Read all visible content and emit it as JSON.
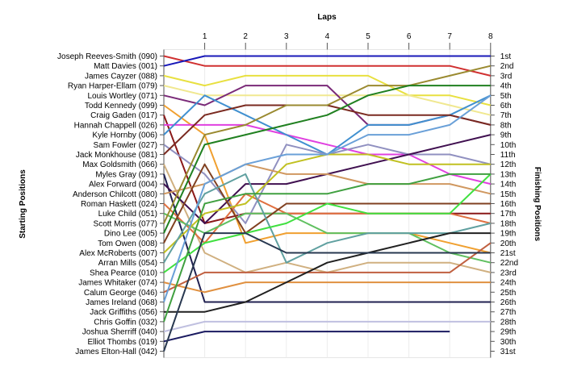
{
  "chart_data": {
    "type": "line",
    "title": "Laps",
    "ylabel_left": "Starting Positions",
    "ylabel_right": "Finishing Positions",
    "laps": [
      1,
      2,
      3,
      4,
      5,
      6,
      7,
      8
    ],
    "finish_labels": [
      "1st",
      "2nd",
      "3rd",
      "4th",
      "5th",
      "6th",
      "7th",
      "8th",
      "9th",
      "10th",
      "11th",
      "12th",
      "13th",
      "14th",
      "15th",
      "16th",
      "17th",
      "18th",
      "19th",
      "20th",
      "21st",
      "22nd",
      "23rd",
      "24th",
      "25th",
      "26th",
      "27th",
      "28th",
      "29th",
      "30th",
      "31st"
    ],
    "grid": true,
    "series": [
      {
        "name": "Joseph Reeves-Smith (090)",
        "color": "#d03030",
        "positions": [
          1,
          2,
          2,
          2,
          2,
          2,
          2,
          2,
          3
        ]
      },
      {
        "name": "Matt Davies (001)",
        "color": "#1818b8",
        "positions": [
          2,
          1,
          1,
          1,
          1,
          1,
          1,
          1,
          1
        ]
      },
      {
        "name": "James Cayzer (088)",
        "color": "#e8e040",
        "positions": [
          3,
          4,
          3,
          3,
          3,
          3,
          5,
          5,
          6
        ]
      },
      {
        "name": "Ryan Harper-Ellam (079)",
        "color": "#f0e890",
        "positions": [
          4,
          5,
          5,
          5,
          5,
          5,
          5,
          6,
          7
        ]
      },
      {
        "name": "Louis Wortley (071)",
        "color": "#7a2a78",
        "positions": [
          5,
          6,
          4,
          4,
          4,
          8,
          8,
          7,
          8
        ]
      },
      {
        "name": "Todd Kennedy (099)",
        "color": "#f0a030",
        "positions": [
          6,
          9,
          20,
          19,
          19,
          19,
          19,
          20,
          21
        ]
      },
      {
        "name": "Craig Gaden (017)",
        "color": "#8a1818",
        "positions": [
          7,
          18,
          17,
          17,
          17,
          17,
          17,
          17,
          17
        ]
      },
      {
        "name": "Hannah Chappell (026)",
        "color": "#e040e0",
        "positions": [
          8,
          8,
          8,
          9,
          10,
          11,
          11,
          13,
          14
        ]
      },
      {
        "name": "Kyle Hornby (006)",
        "color": "#4090d0",
        "positions": [
          9,
          5,
          7,
          9,
          11,
          8,
          8,
          7,
          5
        ]
      },
      {
        "name": "Sam Fowler (027)",
        "color": "#9090c0",
        "positions": [
          10,
          13,
          18,
          10,
          11,
          10,
          11,
          11,
          12
        ]
      },
      {
        "name": "Jack Monkhouse (081)",
        "color": "#7a2a20",
        "positions": [
          11,
          7,
          6,
          6,
          6,
          7,
          7,
          7,
          8
        ]
      },
      {
        "name": "Max Goldsmith (066)",
        "color": "#d0b080",
        "positions": [
          12,
          21,
          23,
          22,
          23,
          22,
          22,
          22,
          23
        ]
      },
      {
        "name": "Myles Gray (091)",
        "color": "#202050",
        "positions": [
          13,
          26,
          26,
          26,
          26,
          26,
          26,
          26,
          26
        ]
      },
      {
        "name": "Alex Forward (004)",
        "color": "#401050",
        "positions": [
          14,
          18,
          14,
          14,
          13,
          12,
          11,
          10,
          9
        ]
      },
      {
        "name": "Anderson Chilcott (080)",
        "color": "#d09860",
        "positions": [
          15,
          14,
          12,
          13,
          13,
          14,
          14,
          14,
          15
        ]
      },
      {
        "name": "Roman Haskett (024)",
        "color": "#e07040",
        "positions": [
          16,
          20,
          15,
          17,
          17,
          17,
          17,
          17,
          18
        ]
      },
      {
        "name": "Luke Child (051)",
        "color": "#60c060",
        "positions": [
          17,
          19,
          17,
          17,
          19,
          19,
          19,
          21,
          22
        ]
      },
      {
        "name": "Scott Morris (077)",
        "color": "#9a8a30",
        "positions": [
          18,
          9,
          8,
          6,
          6,
          4,
          4,
          3,
          2
        ]
      },
      {
        "name": "Dino Lee (005)",
        "color": "#208020",
        "positions": [
          19,
          10,
          9,
          8,
          7,
          5,
          4,
          4,
          4
        ]
      },
      {
        "name": "Tom Owen (008)",
        "color": "#804020",
        "positions": [
          20,
          12,
          19,
          16,
          16,
          16,
          16,
          16,
          16
        ]
      },
      {
        "name": "Alex McRoberts (007)",
        "color": "#c0c020",
        "positions": [
          21,
          17,
          16,
          12,
          11,
          11,
          12,
          12,
          12
        ]
      },
      {
        "name": "Arran Mills (054)",
        "color": "#60a0a0",
        "positions": [
          22,
          15,
          13,
          22,
          20,
          19,
          19,
          19,
          18
        ]
      },
      {
        "name": "Shea Pearce (010)",
        "color": "#40e040",
        "positions": [
          23,
          20,
          19,
          18,
          16,
          17,
          17,
          17,
          13
        ]
      },
      {
        "name": "James Whitaker (074)",
        "color": "#e09040",
        "positions": [
          24,
          25,
          24,
          24,
          24,
          24,
          24,
          24,
          24
        ]
      },
      {
        "name": "Calum George (046)",
        "color": "#c06040",
        "positions": [
          25,
          23,
          23,
          23,
          23,
          23,
          23,
          23,
          20
        ]
      },
      {
        "name": "James Ireland (068)",
        "color": "#6aa0d8",
        "positions": [
          26,
          14,
          12,
          11,
          11,
          9,
          9,
          8,
          5
        ]
      },
      {
        "name": "Jack Griffiths (056)",
        "color": "#202020",
        "positions": [
          27,
          27,
          26,
          24,
          22,
          21,
          20,
          19,
          19
        ]
      },
      {
        "name": "Chris Goffin (032)",
        "color": "#40a040",
        "positions": [
          28,
          16,
          15,
          15,
          15,
          14,
          14,
          13,
          13
        ]
      },
      {
        "name": "Joshua Sherriff (040)",
        "color": "#c0c0e0",
        "positions": [
          29,
          28,
          28,
          28,
          28,
          28,
          28,
          28,
          28
        ]
      },
      {
        "name": "Elliot Thombs (019)",
        "color": "#1a1a60",
        "positions": [
          30,
          29,
          29,
          29,
          29,
          29,
          29,
          29,
          null
        ]
      },
      {
        "name": "James Elton-Hall (042)",
        "color": "#283850",
        "positions": [
          31,
          19,
          19,
          21,
          21,
          21,
          21,
          21,
          21
        ]
      }
    ]
  }
}
